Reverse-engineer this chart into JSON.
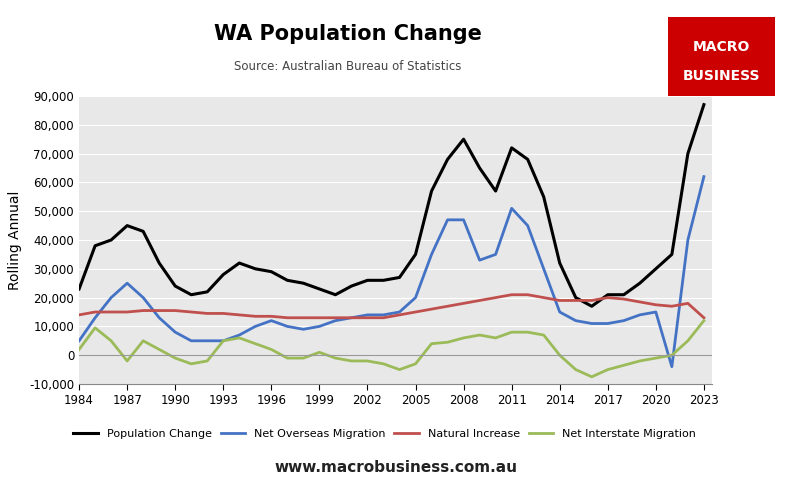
{
  "title": "WA Population Change",
  "subtitle": "Source: Australian Bureau of Statistics",
  "ylabel": "Rolling Annual",
  "background_color": "#e8e8e8",
  "logo_bg": "#cc0000",
  "logo_text1": "MACRO",
  "logo_text2": "BUSINESS",
  "watermark": "www.macrobusiness.com.au",
  "ylim": [
    -10000,
    90000
  ],
  "yticks": [
    -10000,
    0,
    10000,
    20000,
    30000,
    40000,
    50000,
    60000,
    70000,
    80000,
    90000
  ],
  "xticks": [
    1984,
    1987,
    1990,
    1993,
    1996,
    1999,
    2002,
    2005,
    2008,
    2011,
    2014,
    2017,
    2020,
    2023
  ],
  "xlim": [
    1984,
    2023.5
  ],
  "series": [
    {
      "label": "Population Change",
      "color": "#000000",
      "linewidth": 2.2,
      "years": [
        1984,
        1985,
        1986,
        1987,
        1988,
        1989,
        1990,
        1991,
        1992,
        1993,
        1994,
        1995,
        1996,
        1997,
        1998,
        1999,
        2000,
        2001,
        2002,
        2003,
        2004,
        2005,
        2006,
        2007,
        2008,
        2009,
        2010,
        2011,
        2012,
        2013,
        2014,
        2015,
        2016,
        2017,
        2018,
        2019,
        2020,
        2021,
        2022,
        2023
      ],
      "values": [
        23000,
        38000,
        40000,
        45000,
        43000,
        32000,
        24000,
        21000,
        22000,
        28000,
        32000,
        30000,
        29000,
        26000,
        25000,
        23000,
        21000,
        24000,
        26000,
        26000,
        27000,
        35000,
        57000,
        68000,
        75000,
        65000,
        57000,
        72000,
        68000,
        55000,
        32000,
        20000,
        17000,
        21000,
        21000,
        25000,
        30000,
        35000,
        70000,
        87000
      ]
    },
    {
      "label": "Net Overseas Migration",
      "color": "#4472c4",
      "linewidth": 2.0,
      "years": [
        1984,
        1985,
        1986,
        1987,
        1988,
        1989,
        1990,
        1991,
        1992,
        1993,
        1994,
        1995,
        1996,
        1997,
        1998,
        1999,
        2000,
        2001,
        2002,
        2003,
        2004,
        2005,
        2006,
        2007,
        2008,
        2009,
        2010,
        2011,
        2012,
        2013,
        2014,
        2015,
        2016,
        2017,
        2018,
        2019,
        2020,
        2021,
        2022,
        2023
      ],
      "values": [
        5000,
        13000,
        20000,
        25000,
        20000,
        13000,
        8000,
        5000,
        5000,
        5000,
        7000,
        10000,
        12000,
        10000,
        9000,
        10000,
        12000,
        13000,
        14000,
        14000,
        15000,
        20000,
        35000,
        47000,
        47000,
        33000,
        35000,
        51000,
        45000,
        30000,
        15000,
        12000,
        11000,
        11000,
        12000,
        14000,
        15000,
        -4000,
        40000,
        62000
      ]
    },
    {
      "label": "Natural Increase",
      "color": "#c0504d",
      "linewidth": 2.0,
      "years": [
        1984,
        1985,
        1986,
        1987,
        1988,
        1989,
        1990,
        1991,
        1992,
        1993,
        1994,
        1995,
        1996,
        1997,
        1998,
        1999,
        2000,
        2001,
        2002,
        2003,
        2004,
        2005,
        2006,
        2007,
        2008,
        2009,
        2010,
        2011,
        2012,
        2013,
        2014,
        2015,
        2016,
        2017,
        2018,
        2019,
        2020,
        2021,
        2022,
        2023
      ],
      "values": [
        14000,
        15000,
        15000,
        15000,
        15500,
        15500,
        15500,
        15000,
        14500,
        14500,
        14000,
        13500,
        13500,
        13000,
        13000,
        13000,
        13000,
        13000,
        13000,
        13000,
        14000,
        15000,
        16000,
        17000,
        18000,
        19000,
        20000,
        21000,
        21000,
        20000,
        19000,
        19000,
        19000,
        20000,
        19500,
        18500,
        17500,
        17000,
        18000,
        13000
      ]
    },
    {
      "label": "Net Interstate Migration",
      "color": "#9bbb59",
      "linewidth": 2.0,
      "years": [
        1984,
        1985,
        1986,
        1987,
        1988,
        1989,
        1990,
        1991,
        1992,
        1993,
        1994,
        1995,
        1996,
        1997,
        1998,
        1999,
        2000,
        2001,
        2002,
        2003,
        2004,
        2005,
        2006,
        2007,
        2008,
        2009,
        2010,
        2011,
        2012,
        2013,
        2014,
        2015,
        2016,
        2017,
        2018,
        2019,
        2020,
        2021,
        2022,
        2023
      ],
      "values": [
        2000,
        9500,
        5000,
        -2000,
        5000,
        2000,
        -1000,
        -3000,
        -2000,
        5000,
        6000,
        4000,
        2000,
        -1000,
        -1000,
        1000,
        -1000,
        -2000,
        -2000,
        -3000,
        -5000,
        -3000,
        4000,
        4500,
        6000,
        7000,
        6000,
        8000,
        8000,
        7000,
        0,
        -5000,
        -7500,
        -5000,
        -3500,
        -2000,
        -1000,
        0,
        5000,
        12000
      ]
    }
  ]
}
